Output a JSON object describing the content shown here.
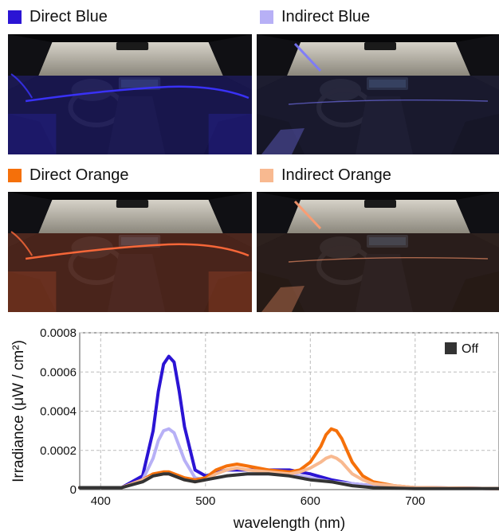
{
  "panels": [
    {
      "label": "Direct Blue",
      "swatch": "#2b14d4",
      "light": "#3b33ff",
      "mode": "direct"
    },
    {
      "label": "Indirect Blue",
      "swatch": "#b7b0f6",
      "light": "#7a78ff",
      "mode": "indirect"
    },
    {
      "label": "Direct Orange",
      "swatch": "#f5700a",
      "light": "#ff6a3a",
      "mode": "direct"
    },
    {
      "label": "Indirect Orange",
      "swatch": "#f8b990",
      "light": "#ff9a6e",
      "mode": "indirect"
    }
  ],
  "chart_data": {
    "type": "line",
    "xlabel": "wavelength (nm)",
    "ylabel": "Irradiance (μW / cm²)",
    "xlim": [
      380,
      780
    ],
    "ylim": [
      0,
      0.0008
    ],
    "xticks": [
      400,
      500,
      600,
      700
    ],
    "yticks": [
      0,
      0.0002,
      0.0004,
      0.0006,
      0.0008
    ],
    "ytick_labels": [
      "0",
      "0.0002",
      "0.0004",
      "0.0006",
      "0.0008"
    ],
    "grid": true,
    "legend": {
      "position": "top-right",
      "entries": [
        {
          "label": "Off",
          "color": "#333333"
        }
      ]
    },
    "series": [
      {
        "key": "direct_blue",
        "color": "#2b14d4",
        "x": [
          380,
          420,
          440,
          450,
          455,
          460,
          465,
          470,
          475,
          480,
          490,
          500,
          520,
          540,
          560,
          580,
          600,
          620,
          640,
          660,
          700,
          780
        ],
        "y": [
          1e-05,
          1e-05,
          7e-05,
          0.0003,
          0.0005,
          0.00064,
          0.00068,
          0.00065,
          0.0005,
          0.00032,
          0.0001,
          7e-05,
          0.0001,
          0.0001,
          0.0001,
          0.0001,
          8e-05,
          5e-05,
          3e-05,
          2e-05,
          1e-05,
          5e-06
        ]
      },
      {
        "key": "indirect_blue",
        "color": "#b7b0f6",
        "x": [
          380,
          420,
          440,
          450,
          455,
          460,
          465,
          470,
          475,
          480,
          490,
          500,
          520,
          540,
          560,
          580,
          600,
          620,
          640,
          660,
          700,
          780
        ],
        "y": [
          1e-05,
          1e-05,
          5e-05,
          0.00016,
          0.00025,
          0.0003,
          0.00031,
          0.00029,
          0.00022,
          0.00015,
          6e-05,
          5e-05,
          7e-05,
          8e-05,
          8e-05,
          8e-05,
          6e-05,
          4e-05,
          3e-05,
          2e-05,
          1e-05,
          5e-06
        ]
      },
      {
        "key": "direct_orange",
        "color": "#f5700a",
        "x": [
          380,
          420,
          440,
          450,
          460,
          465,
          470,
          480,
          490,
          500,
          510,
          520,
          530,
          540,
          560,
          580,
          590,
          600,
          610,
          615,
          620,
          625,
          630,
          635,
          640,
          650,
          660,
          680,
          700,
          780
        ],
        "y": [
          1e-05,
          1e-05,
          5e-05,
          8e-05,
          9e-05,
          9e-05,
          8e-05,
          6e-05,
          5e-05,
          6e-05,
          0.0001,
          0.00012,
          0.00013,
          0.00012,
          0.0001,
          9e-05,
          0.0001,
          0.00014,
          0.00022,
          0.00028,
          0.00031,
          0.0003,
          0.00026,
          0.0002,
          0.00014,
          7e-05,
          4e-05,
          2e-05,
          1e-05,
          5e-06
        ]
      },
      {
        "key": "indirect_orange",
        "color": "#f8b990",
        "x": [
          380,
          420,
          440,
          450,
          460,
          465,
          470,
          480,
          490,
          500,
          510,
          520,
          530,
          540,
          560,
          580,
          590,
          600,
          610,
          615,
          620,
          625,
          630,
          635,
          640,
          650,
          660,
          680,
          700,
          780
        ],
        "y": [
          1e-05,
          1e-05,
          5e-05,
          7e-05,
          8e-05,
          8e-05,
          7e-05,
          5e-05,
          4e-05,
          5e-05,
          8e-05,
          0.0001,
          0.00011,
          0.0001,
          9e-05,
          8e-05,
          9e-05,
          0.00011,
          0.00014,
          0.00016,
          0.00017,
          0.00016,
          0.00014,
          0.00011,
          8e-05,
          5e-05,
          3e-05,
          2e-05,
          1e-05,
          5e-06
        ]
      },
      {
        "key": "off",
        "name": "Off",
        "color": "#333333",
        "x": [
          380,
          420,
          440,
          450,
          460,
          465,
          470,
          480,
          490,
          500,
          520,
          540,
          560,
          580,
          600,
          620,
          640,
          660,
          700,
          780
        ],
        "y": [
          1e-05,
          1e-05,
          4e-05,
          7e-05,
          8e-05,
          8e-05,
          7e-05,
          5e-05,
          4e-05,
          5e-05,
          7e-05,
          8e-05,
          8e-05,
          7e-05,
          5e-05,
          4e-05,
          2e-05,
          1e-05,
          5e-06,
          5e-06
        ]
      }
    ]
  }
}
